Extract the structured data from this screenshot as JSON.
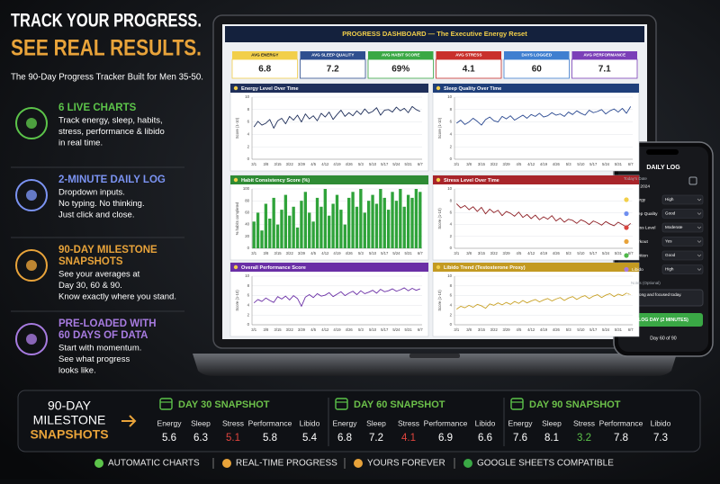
{
  "header": {
    "title_line1": "TRACK YOUR PROGRESS.",
    "title_line2": "SEE REAL RESULTS.",
    "subtitle": "The 90-Day Progress Tracker Built for Men 35-50."
  },
  "features": [
    {
      "heading": [
        "6 LIVE CHARTS"
      ],
      "body": [
        "Track energy, sleep, habits,",
        "stress, performance & libido",
        "in real time."
      ],
      "color": "#5cc44a"
    },
    {
      "heading": [
        "2-MINUTE DAILY LOG"
      ],
      "body": [
        "Dropdown inputs.",
        "No typing. No thinking.",
        "Just click and close."
      ],
      "color": "#7b93f2"
    },
    {
      "heading": [
        "90-DAY MILESTONE",
        "SNAPSHOTS"
      ],
      "body": [
        "See your averages at",
        "Day 30, 60 & 90.",
        "Know exactly where you stand."
      ],
      "color": "#e8a33a"
    },
    {
      "heading": [
        "PRE-LOADED WITH",
        "60 DAYS OF DATA"
      ],
      "body": [
        "Start with momentum.",
        "See what progress",
        "looks like."
      ],
      "color": "#a77be0"
    }
  ],
  "dashboard": {
    "title": "PROGRESS DASHBOARD — The Executive Energy Reset",
    "kpis": [
      {
        "label": "AVG ENERGY",
        "value": 6.8,
        "color": "#f2cf4a"
      },
      {
        "label": "AVG SLEEP QUALITY",
        "value": 7.2,
        "color": "#2f4f8f"
      },
      {
        "label": "AVG HABIT SCORE",
        "value": 69,
        "value_label": "69%",
        "color": "#3aa845"
      },
      {
        "label": "AVG STRESS",
        "value": 4.1,
        "color": "#c9302c"
      },
      {
        "label": "DAYS LOGGED",
        "value": 60,
        "color": "#3f7fd0"
      },
      {
        "label": "AVG PERFORMANCE",
        "value": 7.1,
        "color": "#7b3fb8"
      }
    ],
    "dates": [
      "3/1",
      null,
      null,
      "3/8",
      null,
      null,
      "3/15",
      null,
      null,
      "3/22",
      null,
      null,
      "3/29",
      null,
      null,
      "4/5",
      null,
      null,
      "4/12",
      null,
      null,
      "4/19",
      null,
      null,
      "4/26",
      null,
      null,
      "5/3",
      null,
      null,
      "5/10",
      null,
      null,
      "5/17",
      null,
      null,
      "5/24",
      null,
      null,
      "5/31",
      null,
      null,
      "6/7"
    ],
    "charts": [
      {
        "type": "line",
        "title": "Energy Level Over Time",
        "y_label": "Score (1-10)",
        "color": "#1f2f5a",
        "line_color": "#1f2f5a",
        "ylim": [
          0,
          10
        ],
        "yticks": [
          0,
          2,
          4,
          6,
          8,
          10
        ],
        "values": [
          5.2,
          6.1,
          5.5,
          5.8,
          6.4,
          5.0,
          6.2,
          6.6,
          5.7,
          6.9,
          6.3,
          7.1,
          6.0,
          7.3,
          6.5,
          7.0,
          6.2,
          7.4,
          6.8,
          7.6,
          6.4,
          7.2,
          7.9,
          6.9,
          7.5,
          7.0,
          7.8,
          7.2,
          8.1,
          7.4,
          7.7,
          8.3,
          7.1,
          7.9,
          8.0,
          7.6,
          8.4,
          7.8,
          8.2,
          7.5,
          8.5,
          8.0,
          7.7
        ]
      },
      {
        "type": "line",
        "title": "Sleep Quality Over Time",
        "y_label": "Score (1-10)",
        "color": "#1f3f7a",
        "line_color": "#27468f",
        "ylim": [
          0,
          10
        ],
        "yticks": [
          0,
          2,
          4,
          6,
          8,
          10
        ],
        "values": [
          5.8,
          6.3,
          5.6,
          6.0,
          6.6,
          6.1,
          5.5,
          6.4,
          6.8,
          6.2,
          6.0,
          6.9,
          6.5,
          7.0,
          6.3,
          6.7,
          7.1,
          6.6,
          7.2,
          6.9,
          7.4,
          6.8,
          7.0,
          7.5,
          7.1,
          7.3,
          6.9,
          7.6,
          7.2,
          7.8,
          7.4,
          7.1,
          7.9,
          7.5,
          7.7,
          8.0,
          7.3,
          7.8,
          8.1,
          7.6,
          8.2,
          7.4,
          8.5
        ]
      },
      {
        "type": "bar",
        "title": "Habit Consistency Score (%)",
        "y_label": "% habits completed",
        "color": "#2e8b34",
        "line_color": "#2fa33a",
        "ylim": [
          0,
          100
        ],
        "yticks": [
          0,
          20,
          40,
          60,
          80,
          100
        ],
        "values": [
          45,
          60,
          30,
          75,
          50,
          85,
          40,
          65,
          90,
          55,
          70,
          35,
          80,
          95,
          60,
          45,
          85,
          70,
          100,
          55,
          75,
          90,
          65,
          40,
          85,
          95,
          70,
          100,
          60,
          80,
          90,
          75,
          100,
          85,
          65,
          95,
          80,
          100,
          70,
          90,
          85,
          100,
          95
        ]
      },
      {
        "type": "line",
        "title": "Stress Level Over Time",
        "y_label": "Score (1-10)",
        "color": "#a8242a",
        "line_color": "#8e1f25",
        "ylim": [
          0,
          10
        ],
        "yticks": [
          0,
          2,
          4,
          6,
          8,
          10
        ],
        "values": [
          7.5,
          6.8,
          7.2,
          6.5,
          7.0,
          6.2,
          6.9,
          5.8,
          6.6,
          6.0,
          6.4,
          5.5,
          6.2,
          5.9,
          5.4,
          6.1,
          5.2,
          5.7,
          5.0,
          5.6,
          4.8,
          5.3,
          4.9,
          5.5,
          4.6,
          5.1,
          4.4,
          4.9,
          4.7,
          4.2,
          4.8,
          4.5,
          4.0,
          4.6,
          4.3,
          3.9,
          4.5,
          4.1,
          3.8,
          4.4,
          4.0,
          3.6,
          4.2
        ]
      },
      {
        "type": "line",
        "title": "Overall Performance Score",
        "y_label": "Score (1-10)",
        "color": "#6a2fa6",
        "line_color": "#6a2fa6",
        "ylim": [
          0,
          10
        ],
        "yticks": [
          0,
          2,
          4,
          6,
          8,
          10
        ],
        "values": [
          4.5,
          5.2,
          4.8,
          5.5,
          5.0,
          4.6,
          5.8,
          5.3,
          5.9,
          5.1,
          6.0,
          5.4,
          3.8,
          5.7,
          6.2,
          5.6,
          6.4,
          5.9,
          6.1,
          6.6,
          5.8,
          6.3,
          6.8,
          6.0,
          6.5,
          6.9,
          6.2,
          7.0,
          6.4,
          6.7,
          7.1,
          6.5,
          7.3,
          6.8,
          7.0,
          7.4,
          6.9,
          7.2,
          7.6,
          7.0,
          7.5,
          7.1,
          7.4
        ]
      },
      {
        "type": "line",
        "title": "Libido Trend (Testosterone Proxy)",
        "y_label": "Score (1-10)",
        "color": "#c39a22",
        "line_color": "#c9a227",
        "ylim": [
          0,
          10
        ],
        "yticks": [
          0,
          2,
          4,
          6,
          8,
          10
        ],
        "values": [
          3.2,
          3.8,
          3.5,
          4.0,
          3.6,
          4.2,
          3.9,
          3.4,
          4.3,
          4.0,
          4.5,
          4.1,
          4.6,
          4.2,
          4.8,
          4.4,
          5.0,
          4.5,
          4.9,
          5.2,
          4.7,
          5.1,
          5.4,
          4.9,
          5.3,
          5.6,
          5.0,
          5.5,
          5.8,
          5.2,
          5.7,
          6.0,
          5.4,
          5.9,
          6.2,
          5.6,
          6.1,
          6.4,
          5.8,
          6.3,
          6.0,
          6.5,
          6.2
        ]
      }
    ]
  },
  "phone": {
    "title": "DAILY LOG",
    "date_label": "Today's Date",
    "date": "May 15, 2024",
    "fields": [
      {
        "label": "Energy",
        "value": "High",
        "color": "#f2cf4a"
      },
      {
        "label": "Sleep Quality",
        "value": "Good",
        "color": "#6f8ff0"
      },
      {
        "label": "Stress Level",
        "value": "Moderate",
        "color": "#d9443f"
      },
      {
        "label": "Workout",
        "value": "Yes",
        "color": "#e8a33a"
      },
      {
        "label": "Nutrition",
        "value": "Good",
        "color": "#4fb84a"
      },
      {
        "label": "Libido",
        "value": "High",
        "color": "#a77be0"
      }
    ],
    "notes_label": "Notes (Optional)",
    "notes": "Felt strong and focused today.",
    "button": "LOG DAY (2 MINUTES)",
    "progress": "Day 60 of 90"
  },
  "milestones": {
    "label": [
      "90-DAY",
      "MILESTONE",
      "SNAPSHOTS"
    ],
    "snapshots": [
      {
        "title": "DAY 30 SNAPSHOT",
        "metrics": [
          {
            "label": "Energy",
            "value": 5.6,
            "color": "#ffffff"
          },
          {
            "label": "Sleep",
            "value": 6.3,
            "color": "#ffffff"
          },
          {
            "label": "Stress",
            "value": 5.1,
            "color": "#e0443e"
          },
          {
            "label": "Performance",
            "value": 5.8,
            "color": "#ffffff"
          },
          {
            "label": "Libido",
            "value": 5.4,
            "color": "#ffffff"
          }
        ]
      },
      {
        "title": "DAY 60 SNAPSHOT",
        "metrics": [
          {
            "label": "Energy",
            "value": 6.8,
            "color": "#ffffff"
          },
          {
            "label": "Sleep",
            "value": 7.2,
            "color": "#ffffff"
          },
          {
            "label": "Stress",
            "value": 4.1,
            "color": "#e0443e"
          },
          {
            "label": "Performance",
            "value": 6.9,
            "color": "#ffffff"
          },
          {
            "label": "Libido",
            "value": 6.6,
            "color": "#ffffff"
          }
        ]
      },
      {
        "title": "DAY 90 SNAPSHOT",
        "metrics": [
          {
            "label": "Energy",
            "value": 7.6,
            "color": "#ffffff"
          },
          {
            "label": "Sleep",
            "value": 8.1,
            "color": "#ffffff"
          },
          {
            "label": "Stress",
            "value": 3.2,
            "color": "#5cc44a"
          },
          {
            "label": "Performance",
            "value": 7.8,
            "color": "#ffffff"
          },
          {
            "label": "Libido",
            "value": 7.3,
            "color": "#ffffff"
          }
        ]
      }
    ]
  },
  "footer": [
    "AUTOMATIC CHARTS",
    "REAL-TIME PROGRESS",
    "YOURS FOREVER",
    "GOOGLE SHEETS COMPATIBLE"
  ]
}
